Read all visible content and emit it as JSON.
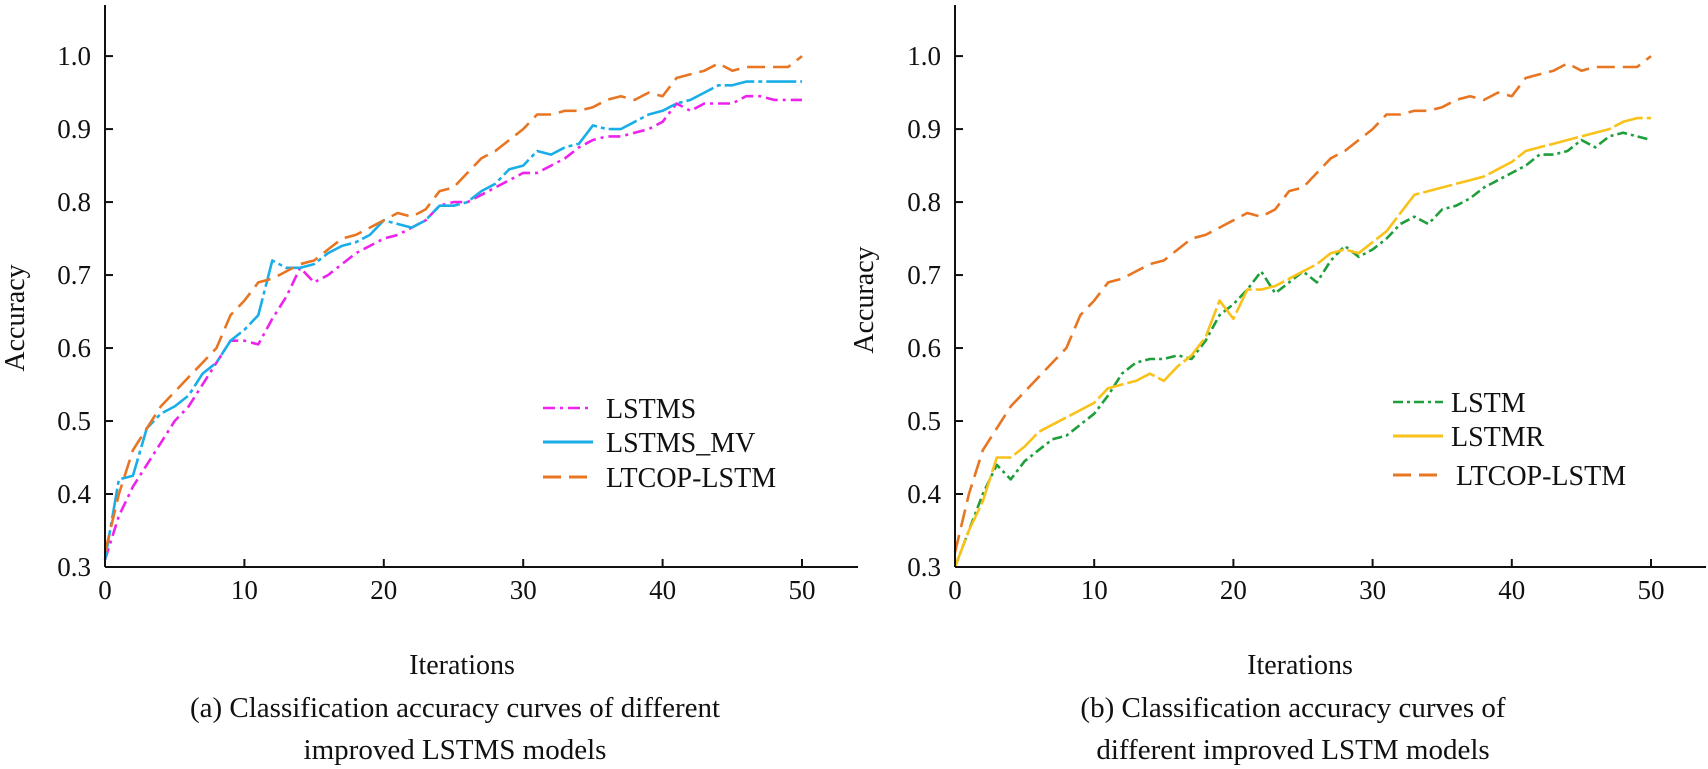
{
  "chart_data": [
    {
      "type": "line",
      "panel": "a",
      "caption_lines": [
        "(a) Classification accuracy curves of different",
        "improved LSTMS models"
      ],
      "xlabel": "Iterations",
      "ylabel": "Accuracy",
      "xlim": [
        0,
        54
      ],
      "ylim": [
        0.3,
        1.07
      ],
      "xticks": [
        0,
        10,
        20,
        30,
        40,
        50
      ],
      "xtick_labels": [
        "0",
        "10",
        "20",
        "30",
        "40",
        "50"
      ],
      "yticks": [
        0.3,
        0.4,
        0.5,
        0.6,
        0.7,
        0.8,
        0.9,
        1.0
      ],
      "ytick_labels": [
        "0.3",
        "0.4",
        "0.5",
        "0.6",
        "0.7",
        "0.8",
        "0.9",
        "1.0"
      ],
      "legend_position": "lower-right",
      "series": [
        {
          "name": "LSTMS",
          "color": "#ee22ee",
          "dash": "12,5,3,5",
          "x": [
            0,
            1,
            2,
            3,
            4,
            5,
            6,
            7,
            8,
            9,
            10,
            11,
            12,
            13,
            14,
            15,
            16,
            17,
            18,
            19,
            20,
            21,
            22,
            23,
            24,
            25,
            26,
            27,
            28,
            29,
            30,
            31,
            32,
            33,
            34,
            35,
            36,
            37,
            38,
            39,
            40,
            41,
            42,
            43,
            44,
            45,
            46,
            47,
            48,
            49,
            50
          ],
          "y": [
            0.31,
            0.37,
            0.41,
            0.44,
            0.47,
            0.5,
            0.52,
            0.55,
            0.58,
            0.61,
            0.61,
            0.605,
            0.64,
            0.67,
            0.71,
            0.69,
            0.7,
            0.715,
            0.73,
            0.74,
            0.75,
            0.755,
            0.765,
            0.775,
            0.795,
            0.8,
            0.8,
            0.81,
            0.82,
            0.83,
            0.84,
            0.84,
            0.85,
            0.86,
            0.875,
            0.885,
            0.89,
            0.89,
            0.895,
            0.9,
            0.91,
            0.935,
            0.925,
            0.935,
            0.935,
            0.935,
            0.945,
            0.945,
            0.94,
            0.94,
            0.94
          ]
        },
        {
          "name": "LSTMS_MV",
          "color": "#1aaee8",
          "dash": "30,4,4,4",
          "x": [
            0,
            1,
            2,
            3,
            4,
            5,
            6,
            7,
            8,
            9,
            10,
            11,
            12,
            13,
            14,
            15,
            16,
            17,
            18,
            19,
            20,
            21,
            22,
            23,
            24,
            25,
            26,
            27,
            28,
            29,
            30,
            31,
            32,
            33,
            34,
            35,
            36,
            37,
            38,
            39,
            40,
            41,
            42,
            43,
            44,
            45,
            46,
            47,
            48,
            49,
            50
          ],
          "y": [
            0.31,
            0.42,
            0.425,
            0.49,
            0.51,
            0.52,
            0.535,
            0.565,
            0.58,
            0.61,
            0.625,
            0.645,
            0.72,
            0.71,
            0.71,
            0.715,
            0.73,
            0.74,
            0.745,
            0.755,
            0.775,
            0.77,
            0.765,
            0.775,
            0.795,
            0.795,
            0.8,
            0.815,
            0.825,
            0.845,
            0.85,
            0.87,
            0.865,
            0.875,
            0.88,
            0.905,
            0.9,
            0.9,
            0.91,
            0.92,
            0.925,
            0.935,
            0.94,
            0.95,
            0.96,
            0.96,
            0.965,
            0.965,
            0.965,
            0.965,
            0.965
          ]
        },
        {
          "name": "LTCOP-LSTM",
          "color": "#e87522",
          "dash": "18,8",
          "x": [
            0,
            1,
            2,
            3,
            4,
            5,
            6,
            7,
            8,
            9,
            10,
            11,
            12,
            13,
            14,
            15,
            16,
            17,
            18,
            19,
            20,
            21,
            22,
            23,
            24,
            25,
            26,
            27,
            28,
            29,
            30,
            31,
            32,
            33,
            34,
            35,
            36,
            37,
            38,
            39,
            40,
            41,
            42,
            43,
            44,
            45,
            46,
            47,
            48,
            49,
            50
          ],
          "y": [
            0.32,
            0.4,
            0.46,
            0.49,
            0.52,
            0.54,
            0.56,
            0.58,
            0.6,
            0.645,
            0.665,
            0.69,
            0.695,
            0.705,
            0.715,
            0.72,
            0.735,
            0.75,
            0.755,
            0.765,
            0.775,
            0.785,
            0.78,
            0.79,
            0.815,
            0.82,
            0.84,
            0.86,
            0.87,
            0.885,
            0.9,
            0.92,
            0.92,
            0.925,
            0.925,
            0.93,
            0.94,
            0.945,
            0.94,
            0.95,
            0.945,
            0.97,
            0.975,
            0.98,
            0.99,
            0.98,
            0.985,
            0.985,
            0.985,
            0.985,
            1.0
          ]
        }
      ]
    },
    {
      "type": "line",
      "panel": "b",
      "caption_lines": [
        "(b) Classification accuracy curves of",
        "different improved LSTM models"
      ],
      "xlabel": "Iterations",
      "ylabel": "Accuracy",
      "xlim": [
        0,
        54
      ],
      "ylim": [
        0.3,
        1.07
      ],
      "xticks": [
        0,
        10,
        20,
        30,
        40,
        50
      ],
      "xtick_labels": [
        "0",
        "10",
        "20",
        "30",
        "40",
        "50"
      ],
      "yticks": [
        0.3,
        0.4,
        0.5,
        0.6,
        0.7,
        0.8,
        0.9,
        1.0
      ],
      "ytick_labels": [
        "0.3",
        "0.4",
        "0.5",
        "0.6",
        "0.7",
        "0.8",
        "0.9",
        "1.0"
      ],
      "legend_position": "lower-right",
      "series": [
        {
          "name": "LSTM",
          "color": "#1f9e3c",
          "dash": "10,4,3,4",
          "x": [
            0,
            1,
            2,
            3,
            4,
            5,
            6,
            7,
            8,
            9,
            10,
            11,
            12,
            13,
            14,
            15,
            16,
            17,
            18,
            19,
            20,
            21,
            22,
            23,
            24,
            25,
            26,
            27,
            28,
            29,
            30,
            31,
            32,
            33,
            34,
            35,
            36,
            37,
            38,
            39,
            40,
            41,
            42,
            43,
            44,
            45,
            46,
            47,
            48,
            49,
            50
          ],
          "y": [
            0.3,
            0.35,
            0.4,
            0.44,
            0.42,
            0.445,
            0.46,
            0.475,
            0.48,
            0.495,
            0.51,
            0.535,
            0.565,
            0.58,
            0.585,
            0.585,
            0.59,
            0.585,
            0.61,
            0.645,
            0.66,
            0.68,
            0.705,
            0.675,
            0.69,
            0.705,
            0.69,
            0.72,
            0.74,
            0.725,
            0.735,
            0.75,
            0.77,
            0.78,
            0.77,
            0.79,
            0.795,
            0.805,
            0.82,
            0.83,
            0.84,
            0.85,
            0.865,
            0.865,
            0.87,
            0.885,
            0.875,
            0.89,
            0.895,
            0.89,
            0.885
          ]
        },
        {
          "name": "LSTMR",
          "color": "#f8c21a",
          "dash": "30,4",
          "x": [
            0,
            1,
            2,
            3,
            4,
            5,
            6,
            7,
            8,
            9,
            10,
            11,
            12,
            13,
            14,
            15,
            16,
            17,
            18,
            19,
            20,
            21,
            22,
            23,
            24,
            25,
            26,
            27,
            28,
            29,
            30,
            31,
            32,
            33,
            34,
            35,
            36,
            37,
            38,
            39,
            40,
            41,
            42,
            43,
            44,
            45,
            46,
            47,
            48,
            49,
            50
          ],
          "y": [
            0.3,
            0.35,
            0.39,
            0.45,
            0.45,
            0.465,
            0.485,
            0.495,
            0.505,
            0.515,
            0.525,
            0.545,
            0.55,
            0.555,
            0.565,
            0.555,
            0.575,
            0.59,
            0.615,
            0.665,
            0.64,
            0.68,
            0.68,
            0.685,
            0.695,
            0.705,
            0.715,
            0.73,
            0.735,
            0.73,
            0.745,
            0.76,
            0.785,
            0.81,
            0.815,
            0.82,
            0.825,
            0.83,
            0.835,
            0.845,
            0.855,
            0.87,
            0.875,
            0.88,
            0.885,
            0.89,
            0.895,
            0.9,
            0.91,
            0.915,
            0.915
          ]
        },
        {
          "name": "LTCOP-LSTM",
          "color": "#e87522",
          "dash": "18,8",
          "x": [
            0,
            1,
            2,
            3,
            4,
            5,
            6,
            7,
            8,
            9,
            10,
            11,
            12,
            13,
            14,
            15,
            16,
            17,
            18,
            19,
            20,
            21,
            22,
            23,
            24,
            25,
            26,
            27,
            28,
            29,
            30,
            31,
            32,
            33,
            34,
            35,
            36,
            37,
            38,
            39,
            40,
            41,
            42,
            43,
            44,
            45,
            46,
            47,
            48,
            49,
            50
          ],
          "y": [
            0.32,
            0.4,
            0.46,
            0.49,
            0.52,
            0.54,
            0.56,
            0.58,
            0.6,
            0.645,
            0.665,
            0.69,
            0.695,
            0.705,
            0.715,
            0.72,
            0.735,
            0.75,
            0.755,
            0.765,
            0.775,
            0.785,
            0.78,
            0.79,
            0.815,
            0.82,
            0.84,
            0.86,
            0.87,
            0.885,
            0.9,
            0.92,
            0.92,
            0.925,
            0.925,
            0.93,
            0.94,
            0.945,
            0.94,
            0.95,
            0.945,
            0.97,
            0.975,
            0.98,
            0.99,
            0.98,
            0.985,
            0.985,
            0.985,
            0.985,
            1.0
          ]
        }
      ]
    }
  ]
}
